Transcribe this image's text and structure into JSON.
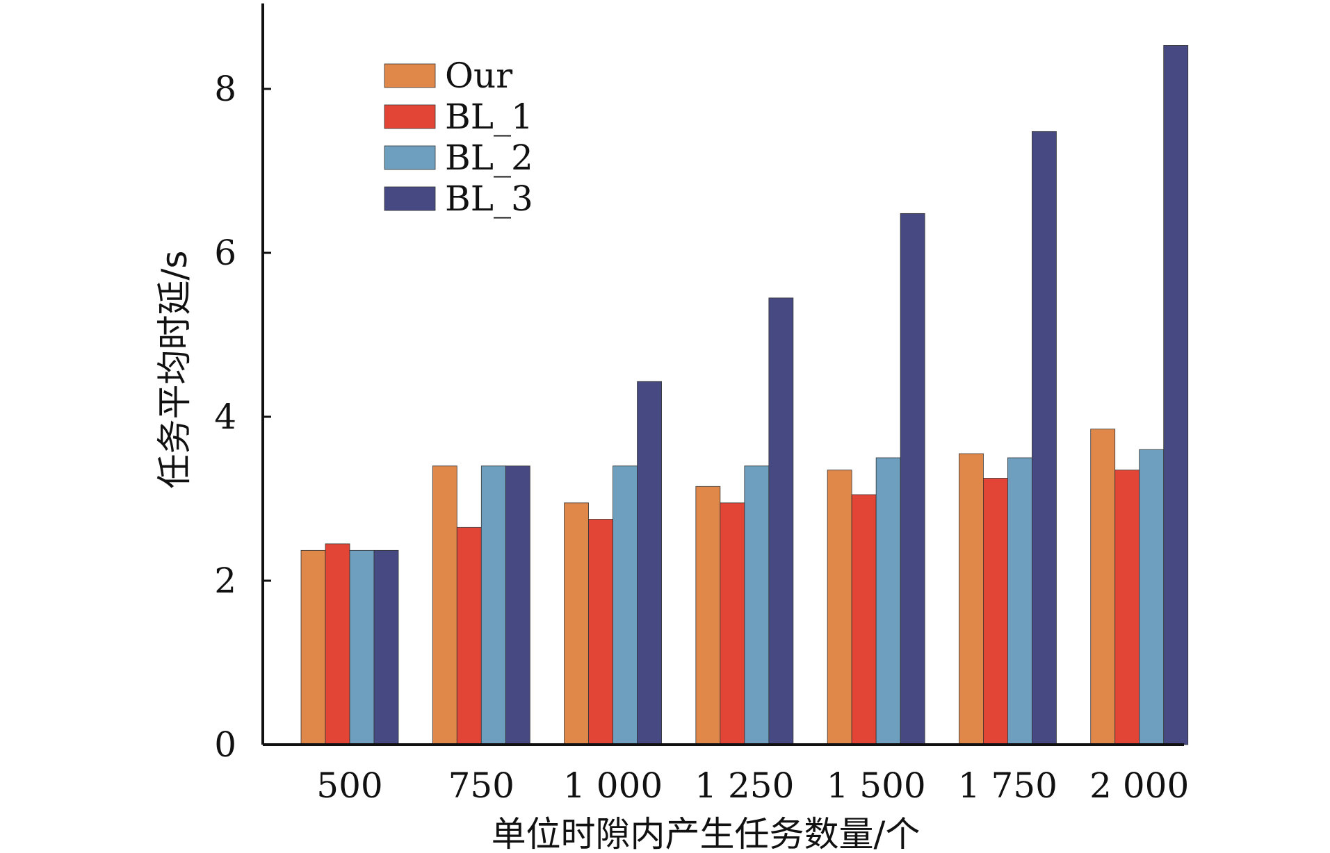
{
  "chart_data": {
    "type": "bar",
    "title": "",
    "xlabel": "单位时隙内产生任务数量/个",
    "ylabel": "任务平均时延/s",
    "categories": [
      "500",
      "750",
      "1 000",
      "1 250",
      "1 500",
      "1 750",
      "2 000"
    ],
    "ylim": [
      0,
      9
    ],
    "yticks": [
      0,
      2,
      4,
      6,
      8
    ],
    "grid": false,
    "legend_position": "top-left",
    "series": [
      {
        "name": "Our",
        "color": "#E0874A",
        "values": [
          2.37,
          3.4,
          2.95,
          3.15,
          3.35,
          3.55,
          3.85
        ]
      },
      {
        "name": "BL_1",
        "color": "#E24535",
        "values": [
          2.45,
          2.65,
          2.75,
          2.95,
          3.05,
          3.25,
          3.35
        ]
      },
      {
        "name": "BL_2",
        "color": "#6F9FBF",
        "values": [
          2.37,
          3.4,
          3.4,
          3.4,
          3.5,
          3.5,
          3.6
        ]
      },
      {
        "name": "BL_3",
        "color": "#474A82",
        "values": [
          2.37,
          3.4,
          4.43,
          5.45,
          6.48,
          7.48,
          8.53
        ]
      }
    ]
  }
}
